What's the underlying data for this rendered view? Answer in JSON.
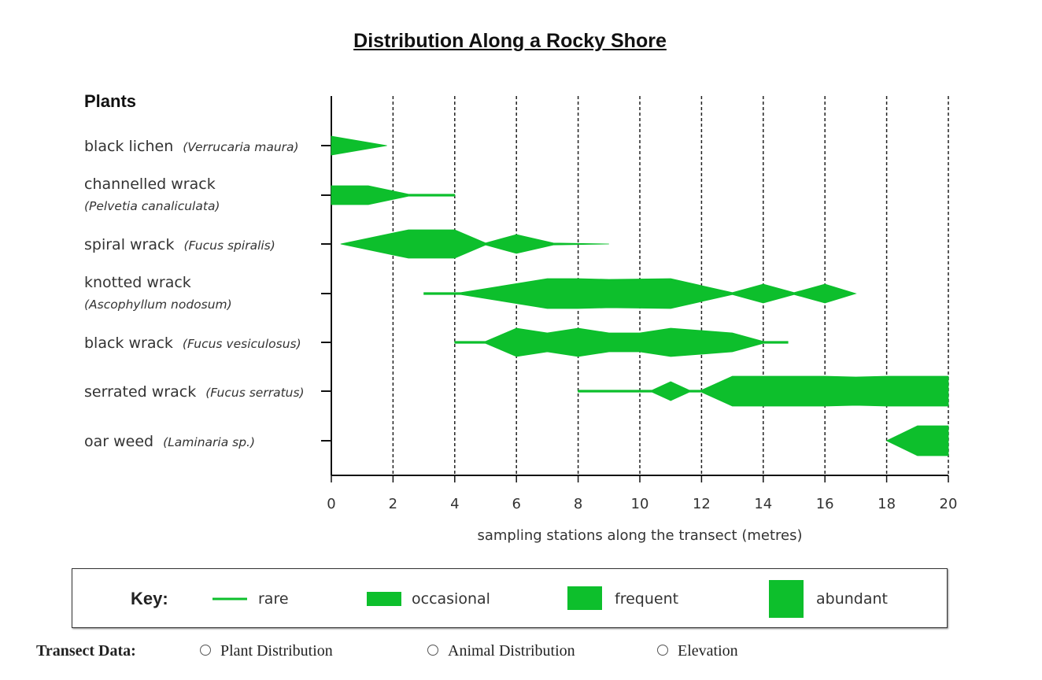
{
  "title": "Distribution Along a Rocky Shore",
  "chart_data": {
    "type": "distribution",
    "category_header": "Plants",
    "xlabel": "sampling stations along the transect (metres)",
    "xlim": [
      0,
      20
    ],
    "xticks": [
      "0",
      "2",
      "4",
      "6",
      "8",
      "10",
      "12",
      "14",
      "16",
      "18",
      "20"
    ],
    "abundance_scale": {
      "rare": 1,
      "occasional": 2,
      "frequent": 3,
      "abundant": 4
    },
    "series": [
      {
        "name": "black lichen",
        "latin": "(Verrucaria maura)",
        "two_line": false,
        "profile": [
          [
            0,
            2
          ],
          [
            1.8,
            0
          ]
        ]
      },
      {
        "name": "channelled wrack",
        "latin": "(Pelvetia canaliculata)",
        "two_line": true,
        "profile": [
          [
            0,
            2
          ],
          [
            1.2,
            2
          ],
          [
            2.5,
            1
          ],
          [
            4,
            1
          ]
        ]
      },
      {
        "name": "spiral wrack",
        "latin": "(Fucus spiralis)",
        "two_line": false,
        "profile": [
          [
            0.3,
            0
          ],
          [
            2.5,
            3
          ],
          [
            4,
            3
          ],
          [
            5,
            1
          ],
          [
            6,
            2
          ],
          [
            7.2,
            1
          ],
          [
            9,
            0
          ]
        ]
      },
      {
        "name": "knotted wrack",
        "latin": "(Ascophyllum nodosum)",
        "two_line": true,
        "profile": [
          [
            3,
            1
          ],
          [
            4.2,
            1
          ],
          [
            7,
            4
          ],
          [
            8,
            4
          ],
          [
            9,
            3
          ],
          [
            11,
            4
          ],
          [
            13,
            1
          ],
          [
            14,
            2
          ],
          [
            15,
            1
          ],
          [
            16,
            2
          ],
          [
            17,
            0
          ]
        ]
      },
      {
        "name": "black wrack",
        "latin": "(Fucus vesiculosus)",
        "two_line": false,
        "profile": [
          [
            4,
            1
          ],
          [
            5,
            1
          ],
          [
            6,
            3
          ],
          [
            7,
            2
          ],
          [
            8,
            3
          ],
          [
            9,
            2
          ],
          [
            10,
            2
          ],
          [
            11,
            3
          ],
          [
            13,
            2
          ],
          [
            14,
            1
          ],
          [
            14.8,
            1
          ]
        ]
      },
      {
        "name": "serrated wrack",
        "latin": "(Fucus serratus)",
        "two_line": false,
        "profile": [
          [
            8,
            1
          ],
          [
            10.4,
            1
          ],
          [
            11,
            2
          ],
          [
            11.6,
            1
          ],
          [
            12,
            1
          ],
          [
            13,
            4
          ],
          [
            16,
            4
          ],
          [
            17,
            3
          ],
          [
            18,
            4
          ],
          [
            20,
            4
          ]
        ]
      },
      {
        "name": "oar weed",
        "latin": "(Laminaria sp.)",
        "two_line": false,
        "profile": [
          [
            18,
            0
          ],
          [
            19,
            4
          ],
          [
            20,
            4
          ]
        ]
      }
    ],
    "key": {
      "heading": "Key:",
      "items": [
        "rare",
        "occasional",
        "frequent",
        "abundant"
      ]
    },
    "grid": "dashed vertical lines at each tick",
    "colors": {
      "fill": "#0dbf2c",
      "axis": "#111111"
    }
  },
  "form": {
    "label": "Transect Data:",
    "options": [
      "Plant Distribution",
      "Animal Distribution",
      "Elevation"
    ]
  }
}
